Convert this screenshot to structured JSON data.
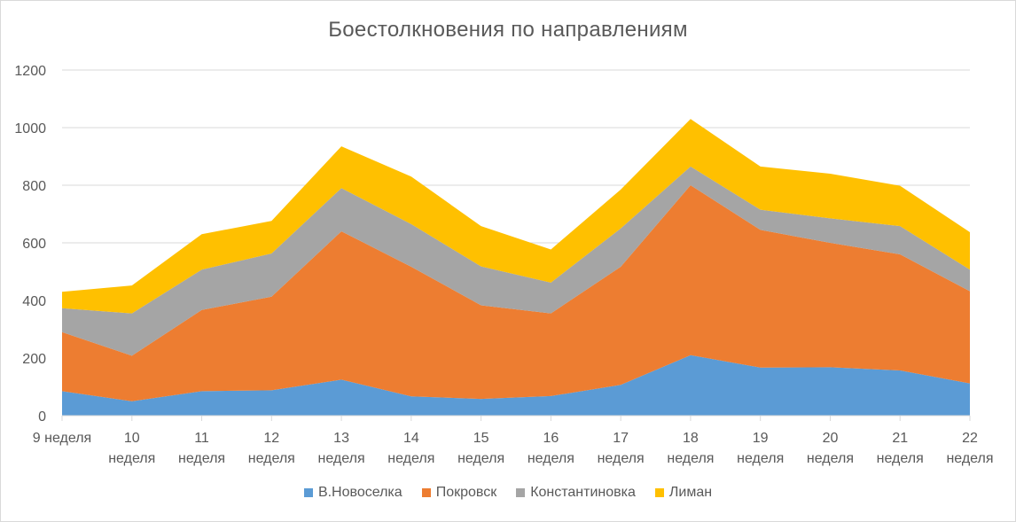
{
  "chart_data": {
    "type": "area",
    "stacked": true,
    "title": "Боестолкновения по направлениям",
    "xlabel": "",
    "ylabel": "",
    "ylim": [
      0,
      1200
    ],
    "yticks": [
      "0",
      "200",
      "400",
      "600",
      "800",
      "1000",
      "1200"
    ],
    "categories": [
      [
        "9 неделя"
      ],
      [
        "10",
        "неделя"
      ],
      [
        "11",
        "неделя"
      ],
      [
        "12",
        "неделя"
      ],
      [
        "13",
        "неделя"
      ],
      [
        "14",
        "неделя"
      ],
      [
        "15",
        "неделя"
      ],
      [
        "16",
        "неделя"
      ],
      [
        "17",
        "неделя"
      ],
      [
        "18",
        "неделя"
      ],
      [
        "19",
        "неделя"
      ],
      [
        "20",
        "неделя"
      ],
      [
        "21",
        "неделя"
      ],
      [
        "22",
        "неделя"
      ]
    ],
    "series": [
      {
        "name": "В.Новоселка",
        "color": "#5b9bd5",
        "values": [
          85,
          50,
          85,
          88,
          125,
          67,
          58,
          68,
          107,
          210,
          167,
          168,
          157,
          112
        ]
      },
      {
        "name": "Покровск",
        "color": "#ed7d31",
        "values": [
          205,
          158,
          282,
          325,
          515,
          450,
          325,
          287,
          410,
          590,
          478,
          432,
          403,
          320
        ]
      },
      {
        "name": "Константиновка",
        "color": "#a5a5a5",
        "values": [
          83,
          147,
          140,
          150,
          150,
          148,
          135,
          107,
          133,
          65,
          70,
          85,
          98,
          75
        ]
      },
      {
        "name": "Лиман",
        "color": "#ffc000",
        "values": [
          57,
          97,
          123,
          113,
          145,
          165,
          140,
          115,
          135,
          165,
          150,
          155,
          140,
          130
        ]
      }
    ],
    "grid": true,
    "legend_position": "bottom"
  }
}
